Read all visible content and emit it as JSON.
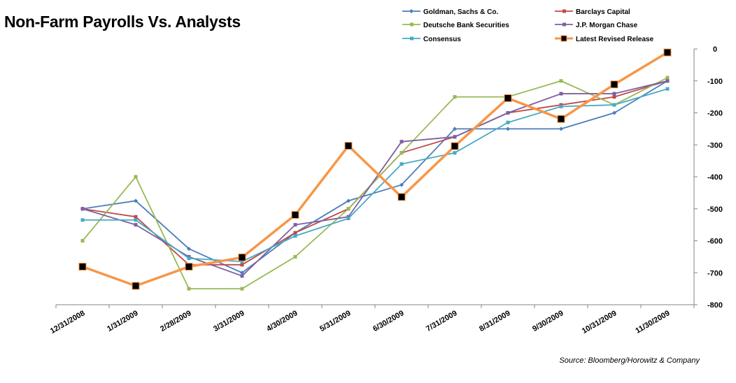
{
  "chart_data": {
    "type": "line",
    "title": "Non-Farm Payrolls Vs. Analysts",
    "source": "Source: Bloomberg/Horowitz & Company",
    "categories": [
      "12/31/2008",
      "1/31/2009",
      "2/28/2009",
      "3/31/2009",
      "4/30/2009",
      "5/31/2009",
      "6/30/2009",
      "7/31/2009",
      "8/31/2009",
      "9/30/2009",
      "10/31/2009",
      "11/30/2009"
    ],
    "y_ticks": [
      "0",
      "-100",
      "-200",
      "-300",
      "-400",
      "-500",
      "-600",
      "-700",
      "-800"
    ],
    "ylim": [
      -800,
      0
    ],
    "y_axis_side": "right",
    "legend_position": "top-right",
    "grid": false,
    "series": [
      {
        "name": "Goldman, Sachs & Co.",
        "color": "#4a7ebb",
        "marker": "diamond",
        "values": [
          -500,
          -475,
          -625,
          -700,
          -575,
          -475,
          -425,
          -250,
          -250,
          -250,
          -200,
          -100
        ]
      },
      {
        "name": "Barclays Capital",
        "color": "#be4b48",
        "marker": "square",
        "values": [
          -500,
          -525,
          -675,
          -675,
          -575,
          -500,
          -325,
          -275,
          -200,
          -175,
          -150,
          -100
        ]
      },
      {
        "name": "Deutsche Bank Securities",
        "color": "#98b954",
        "marker": "square",
        "values": [
          -600,
          -400,
          -750,
          -750,
          -650,
          -500,
          -325,
          -150,
          -150,
          -100,
          -175,
          -90
        ]
      },
      {
        "name": "J.P. Morgan Chase",
        "color": "#7d60a0",
        "marker": "square",
        "values": [
          -500,
          -550,
          -650,
          -710,
          -550,
          -525,
          -290,
          -275,
          -200,
          -140,
          -140,
          -100
        ]
      },
      {
        "name": "Consensus",
        "color": "#46aac5",
        "marker": "square",
        "values": [
          -535,
          -535,
          -655,
          -665,
          -585,
          -530,
          -360,
          -325,
          -230,
          -180,
          -175,
          -125
        ]
      },
      {
        "name": "Latest Revised Release",
        "color": "#f79646",
        "marker": "large-square",
        "values": [
          -681,
          -741,
          -681,
          -652,
          -519,
          -303,
          -463,
          -304,
          -154,
          -219,
          -111,
          -11
        ]
      }
    ]
  }
}
